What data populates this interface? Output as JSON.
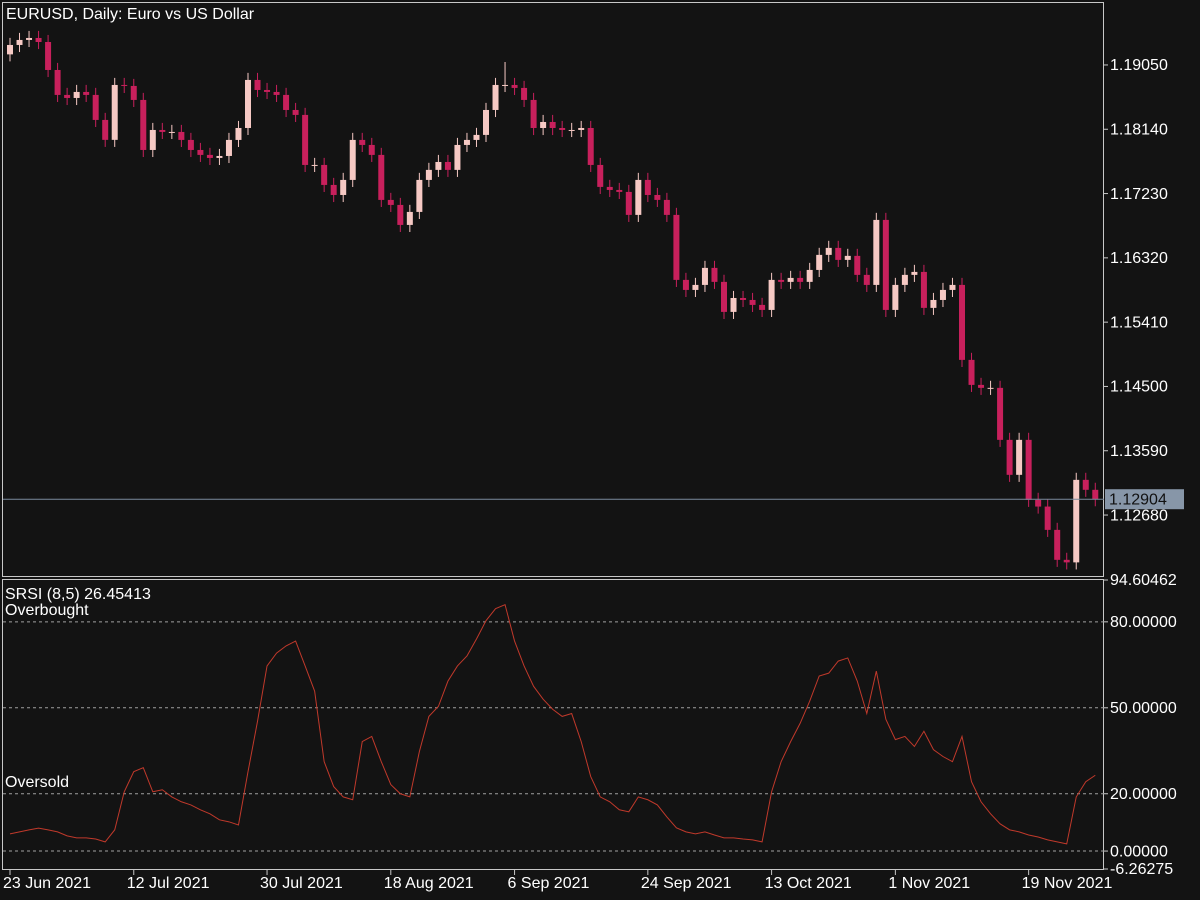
{
  "chart_data": [
    {
      "type": "candlestick",
      "title": "EURUSD, Daily:  Euro vs US Dollar",
      "categories": [
        "23 Jun 2021",
        null,
        null,
        null,
        null,
        null,
        null,
        null,
        null,
        null,
        null,
        null,
        null,
        "12 Jul 2021",
        null,
        null,
        null,
        null,
        null,
        null,
        null,
        null,
        null,
        null,
        null,
        null,
        null,
        "30 Jul 2021",
        null,
        null,
        null,
        null,
        null,
        null,
        null,
        null,
        null,
        null,
        null,
        null,
        "18 Aug 2021",
        null,
        null,
        null,
        null,
        null,
        null,
        null,
        null,
        null,
        null,
        null,
        null,
        "6 Sep 2021",
        null,
        null,
        null,
        null,
        null,
        null,
        null,
        null,
        null,
        null,
        null,
        null,
        null,
        "24 Sep 2021",
        null,
        null,
        null,
        null,
        null,
        null,
        null,
        null,
        null,
        null,
        null,
        null,
        "13 Oct 2021",
        null,
        null,
        null,
        null,
        null,
        null,
        null,
        null,
        null,
        null,
        null,
        null,
        "1 Nov 2021",
        null,
        null,
        null,
        null,
        null,
        null,
        null,
        null,
        null,
        null,
        null,
        null,
        null,
        "19 Nov 2021",
        null,
        null,
        null,
        null,
        null,
        null,
        null
      ],
      "open": [
        1.192,
        1.19333,
        1.19404,
        1.19432,
        1.19375,
        1.18979,
        1.18626,
        1.18583,
        1.18668,
        1.18626,
        1.18272,
        1.1799,
        1.18767,
        1.18753,
        1.18555,
        1.17847,
        1.1813,
        1.18102,
        1.18102,
        1.17989,
        1.17847,
        1.17777,
        1.17734,
        1.17762,
        1.17989,
        1.18158,
        1.18838,
        1.18696,
        1.18668,
        1.18626,
        1.18413,
        1.18343,
        1.17635,
        1.17635,
        1.17352,
        1.1721,
        1.17423,
        1.17989,
        1.17918,
        1.17777,
        1.1714,
        1.17069,
        1.16786,
        1.1697,
        1.17423,
        1.17565,
        1.17677,
        1.17565,
        1.17918,
        1.17989,
        1.1806,
        1.18413,
        1.18767,
        1.18767,
        1.18725,
        1.18555,
        1.18158,
        1.18243,
        1.18158,
        1.1813,
        1.1813,
        1.18158,
        1.17635,
        1.17324,
        1.17281,
        1.17253,
        1.16928,
        1.17423,
        1.1721,
        1.1714,
        1.16928,
        1.16008,
        1.15866,
        1.15937,
        1.16178,
        1.1598,
        1.15555,
        1.15752,
        1.15724,
        1.15654,
        1.15583,
        1.16008,
        1.1598,
        1.16036,
        1.1598,
        1.16149,
        1.16362,
        1.16461,
        1.16291,
        1.16348,
        1.16079,
        1.15937,
        1.16857,
        1.15583,
        1.15937,
        1.16079,
        1.16121,
        1.15612,
        1.15724,
        1.15866,
        1.15937,
        1.14876,
        1.14522,
        1.1448,
        1.1448,
        1.13744,
        1.13249,
        1.13744,
        1.12895,
        1.128,
        1.1247,
        1.12046,
        1.1201,
        1.13178,
        1.13037
      ],
      "high": [
        1.19433,
        1.19504,
        1.19532,
        1.19532,
        1.19475,
        1.19079,
        1.18726,
        1.18768,
        1.18768,
        1.18726,
        1.18372,
        1.18867,
        1.18867,
        1.18853,
        1.18655,
        1.1823,
        1.1823,
        1.18202,
        1.18202,
        1.18089,
        1.17947,
        1.17877,
        1.17862,
        1.18089,
        1.18258,
        1.18938,
        1.18938,
        1.18796,
        1.18768,
        1.18726,
        1.18513,
        1.18443,
        1.17735,
        1.17735,
        1.17452,
        1.17523,
        1.18089,
        1.18089,
        1.18018,
        1.17877,
        1.1724,
        1.17169,
        1.1707,
        1.17523,
        1.17665,
        1.17777,
        1.17777,
        1.18018,
        1.18089,
        1.1816,
        1.18513,
        1.18867,
        1.19092,
        1.18867,
        1.18825,
        1.18655,
        1.18343,
        1.18343,
        1.18258,
        1.1823,
        1.18258,
        1.18258,
        1.17735,
        1.17424,
        1.17381,
        1.17353,
        1.17523,
        1.17523,
        1.1731,
        1.1724,
        1.17028,
        1.16108,
        1.16037,
        1.16278,
        1.16278,
        1.1608,
        1.15852,
        1.15852,
        1.15824,
        1.15754,
        1.16108,
        1.16108,
        1.16136,
        1.16136,
        1.16249,
        1.16462,
        1.16561,
        1.16561,
        1.16448,
        1.16448,
        1.16179,
        1.16957,
        1.16957,
        1.16037,
        1.16179,
        1.16221,
        1.16221,
        1.15824,
        1.15966,
        1.16037,
        1.16037,
        1.14976,
        1.14622,
        1.1458,
        1.1458,
        1.13844,
        1.13844,
        1.13844,
        1.12995,
        1.129,
        1.1257,
        1.12146,
        1.13278,
        1.13278,
        1.13137
      ],
      "low": [
        1.191,
        1.19233,
        1.19304,
        1.19275,
        1.18879,
        1.18526,
        1.18483,
        1.18483,
        1.18526,
        1.18172,
        1.1789,
        1.1789,
        1.18653,
        1.18455,
        1.17747,
        1.17747,
        1.18002,
        1.18002,
        1.17889,
        1.17747,
        1.17677,
        1.17634,
        1.17634,
        1.17662,
        1.17889,
        1.18058,
        1.18596,
        1.18568,
        1.18526,
        1.18313,
        1.18243,
        1.17535,
        1.17535,
        1.17252,
        1.1711,
        1.1711,
        1.17323,
        1.17818,
        1.17677,
        1.1704,
        1.16969,
        1.16686,
        1.16686,
        1.1687,
        1.17323,
        1.17465,
        1.17465,
        1.17465,
        1.17818,
        1.17889,
        1.1796,
        1.18313,
        1.18667,
        1.18625,
        1.18455,
        1.18058,
        1.18058,
        1.18058,
        1.1803,
        1.1803,
        1.1803,
        1.17535,
        1.17224,
        1.17181,
        1.17153,
        1.16828,
        1.16828,
        1.1711,
        1.1704,
        1.16828,
        1.15908,
        1.15766,
        1.15766,
        1.15837,
        1.1588,
        1.15455,
        1.15455,
        1.15624,
        1.15554,
        1.15483,
        1.15483,
        1.1588,
        1.1588,
        1.1588,
        1.1588,
        1.16049,
        1.16262,
        1.16191,
        1.16191,
        1.15979,
        1.15837,
        1.15837,
        1.15483,
        1.15483,
        1.15837,
        1.15979,
        1.15512,
        1.15512,
        1.15624,
        1.15766,
        1.14776,
        1.14422,
        1.1438,
        1.1438,
        1.13644,
        1.13149,
        1.13149,
        1.12795,
        1.127,
        1.1237,
        1.11946,
        1.1191,
        1.1191,
        1.12937,
        1.12804
      ],
      "close": [
        1.19333,
        1.19404,
        1.19432,
        1.19375,
        1.18979,
        1.18626,
        1.18583,
        1.18668,
        1.18626,
        1.18272,
        1.1799,
        1.18767,
        1.18753,
        1.18555,
        1.17847,
        1.1813,
        1.18102,
        1.18102,
        1.17989,
        1.17847,
        1.17777,
        1.17734,
        1.17762,
        1.17989,
        1.18158,
        1.18838,
        1.18696,
        1.18668,
        1.18626,
        1.18413,
        1.18343,
        1.17635,
        1.17635,
        1.17352,
        1.1721,
        1.17423,
        1.17989,
        1.17918,
        1.17777,
        1.1714,
        1.17069,
        1.16786,
        1.1697,
        1.17423,
        1.17565,
        1.17677,
        1.17565,
        1.17918,
        1.17989,
        1.1806,
        1.18413,
        1.18767,
        1.18767,
        1.18725,
        1.18555,
        1.18158,
        1.18243,
        1.18158,
        1.1813,
        1.1813,
        1.18158,
        1.17635,
        1.17324,
        1.17281,
        1.17253,
        1.16928,
        1.17423,
        1.1721,
        1.1714,
        1.16928,
        1.16008,
        1.15866,
        1.15937,
        1.16178,
        1.1598,
        1.15555,
        1.15752,
        1.15724,
        1.15654,
        1.15583,
        1.16008,
        1.1598,
        1.16036,
        1.1598,
        1.16149,
        1.16362,
        1.16461,
        1.16291,
        1.16348,
        1.16079,
        1.15937,
        1.16857,
        1.15583,
        1.15937,
        1.16079,
        1.16121,
        1.15612,
        1.15724,
        1.15866,
        1.15937,
        1.14876,
        1.14522,
        1.1448,
        1.1448,
        1.13744,
        1.13249,
        1.13744,
        1.12895,
        1.128,
        1.1247,
        1.12046,
        1.1201,
        1.13178,
        1.13037,
        1.12904
      ],
      "up_color": "#f6c9c4",
      "down_color": "#c8205c",
      "current_price": 1.12904,
      "ylim": [
        1.11803,
        1.19927
      ],
      "yticks": [
        {
          "value": 1.1905,
          "label": "1.19050"
        },
        {
          "value": 1.1814,
          "label": "1.18140"
        },
        {
          "value": 1.1723,
          "label": "1.17230"
        },
        {
          "value": 1.1632,
          "label": "1.16320"
        },
        {
          "value": 1.1541,
          "label": "1.15410"
        },
        {
          "value": 1.145,
          "label": "1.14500"
        },
        {
          "value": 1.1359,
          "label": "1.13590"
        },
        {
          "value": 1.1268,
          "label": "1.12680"
        }
      ]
    },
    {
      "type": "line",
      "title": "SRSI (8,5) 26.45413",
      "color": "#c0392b",
      "values": [
        6.0,
        6.7,
        7.4,
        8.0,
        7.4,
        6.7,
        5.3,
        4.6,
        4.6,
        4.2,
        3.2,
        7.4,
        20.7,
        27.7,
        29.1,
        20.7,
        21.4,
        18.9,
        17.2,
        16.1,
        14.4,
        13.0,
        10.9,
        10.2,
        9.1,
        27.7,
        45.3,
        64.6,
        69.1,
        71.6,
        73.3,
        64.6,
        55.8,
        31.2,
        22.5,
        18.9,
        17.9,
        38.2,
        40.0,
        31.2,
        23.2,
        20.0,
        18.9,
        34.7,
        47.0,
        50.5,
        59.3,
        64.6,
        68.1,
        74.0,
        80.4,
        84.6,
        86.0,
        73.3,
        64.6,
        57.5,
        53.0,
        49.5,
        47.0,
        48.0,
        38.2,
        26.0,
        18.9,
        17.2,
        14.4,
        13.7,
        18.9,
        17.9,
        16.1,
        11.9,
        8.1,
        6.7,
        6.0,
        6.7,
        5.6,
        4.6,
        4.6,
        4.2,
        3.9,
        3.2,
        20.7,
        31.2,
        38.2,
        44.6,
        52.3,
        61.1,
        62.1,
        66.3,
        67.4,
        59.3,
        48.0,
        62.8,
        46.0,
        38.9,
        40.0,
        36.5,
        41.8,
        35.4,
        33.0,
        31.2,
        40.0,
        24.2,
        17.2,
        13.0,
        9.5,
        7.4,
        6.7,
        5.6,
        4.9,
        3.9,
        3.2,
        2.5,
        18.9,
        24.2,
        26.45413
      ],
      "annotations": [
        {
          "text": "Overbought",
          "y": 80
        },
        {
          "text": "Oversold",
          "y": 20
        }
      ],
      "ylim": [
        -6.26275,
        94.60462
      ],
      "yticks": [
        94.60462,
        {
          "value": 80,
          "label": "80.00000"
        },
        {
          "value": 50,
          "label": "50.00000"
        },
        {
          "value": 20,
          "label": "20.00000"
        },
        {
          "value": 0,
          "label": "0.00000"
        },
        -6.26275
      ]
    }
  ]
}
